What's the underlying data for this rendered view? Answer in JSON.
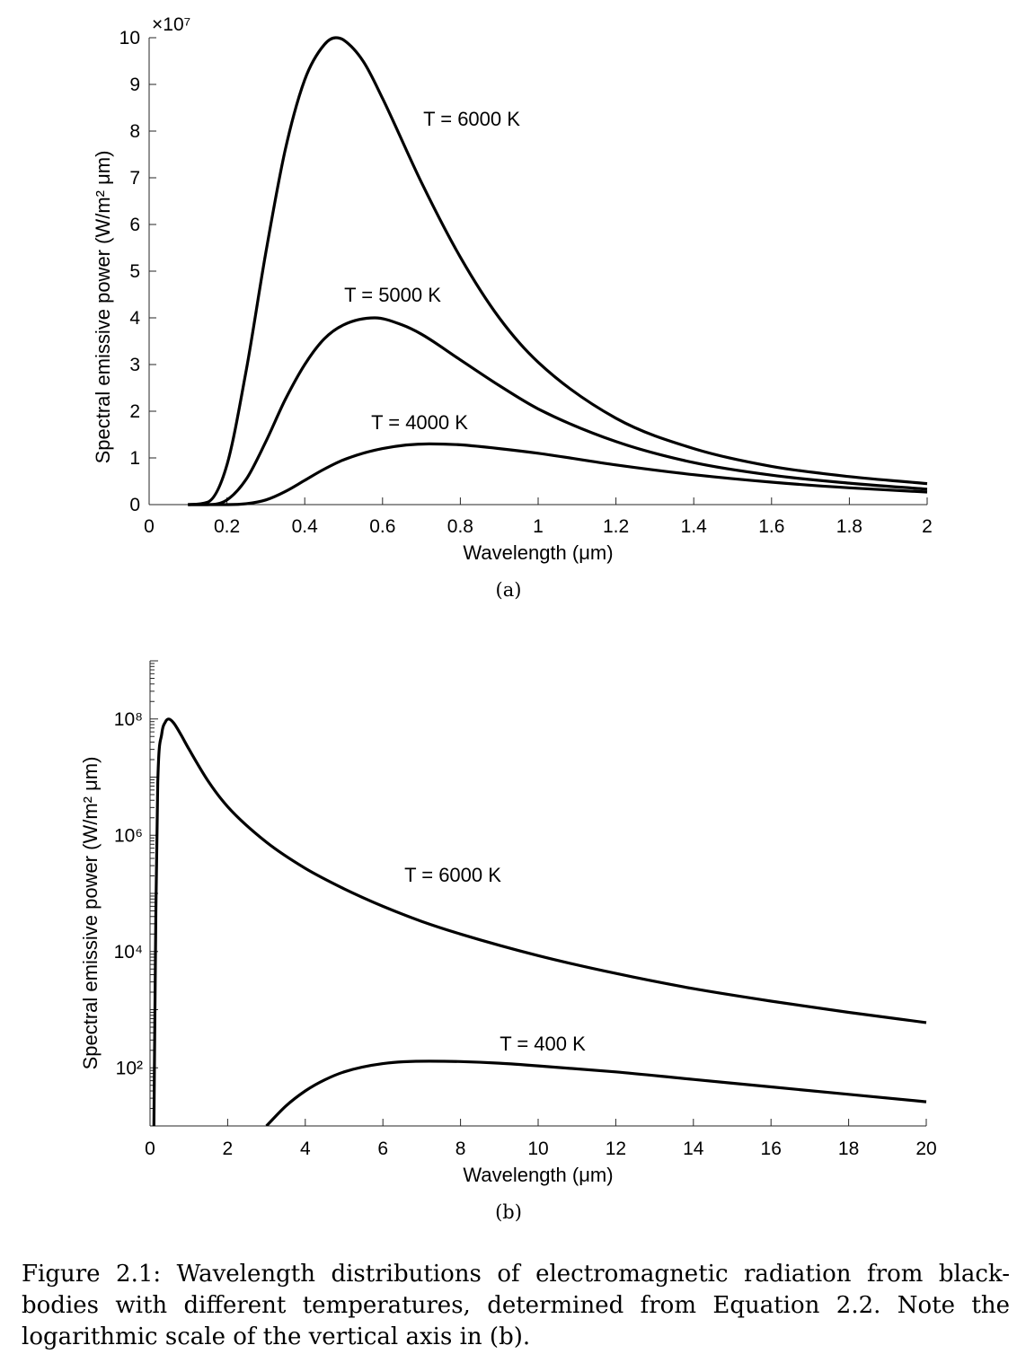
{
  "chart_data": [
    {
      "type": "line",
      "title": "",
      "xlabel": "Wavelength (μm)",
      "ylabel": "Spectral emissive power (W/m² μm)",
      "y_exponent_label": "×10⁷",
      "xlim": [
        0,
        2
      ],
      "ylim": [
        0,
        10
      ],
      "x_ticks": [
        0,
        0.2,
        0.4,
        0.6,
        0.8,
        1,
        1.2,
        1.4,
        1.6,
        1.8,
        2
      ],
      "x_tick_labels": [
        "0",
        "0.2",
        "0.4",
        "0.6",
        "0.8",
        "1",
        "1.2",
        "1.4",
        "1.6",
        "1.8",
        "2"
      ],
      "y_ticks": [
        0,
        1,
        2,
        3,
        4,
        5,
        6,
        7,
        8,
        9,
        10
      ],
      "y_tick_labels": [
        "0",
        "1",
        "2",
        "3",
        "4",
        "5",
        "6",
        "7",
        "8",
        "9",
        "10"
      ],
      "grid": false,
      "series": [
        {
          "name": "T = 6000 K",
          "temperature_K": 6000,
          "label": "T = 6000 K",
          "x": [
            0.1,
            0.15,
            0.2,
            0.25,
            0.3,
            0.35,
            0.4,
            0.45,
            0.48,
            0.5,
            0.55,
            0.6,
            0.7,
            0.8,
            0.9,
            1.0,
            1.2,
            1.4,
            1.6,
            1.8,
            2.0
          ],
          "values": [
            0.0,
            0.05,
            0.85,
            2.9,
            5.4,
            7.6,
            9.1,
            9.85,
            10.0,
            9.95,
            9.5,
            8.7,
            6.9,
            5.3,
            4.0,
            3.05,
            1.85,
            1.2,
            0.82,
            0.6,
            0.45
          ]
        },
        {
          "name": "T = 5000 K",
          "temperature_K": 5000,
          "label": "T = 5000 K",
          "x": [
            0.1,
            0.15,
            0.2,
            0.25,
            0.3,
            0.35,
            0.4,
            0.45,
            0.5,
            0.58,
            0.65,
            0.7,
            0.8,
            0.9,
            1.0,
            1.2,
            1.4,
            1.6,
            1.8,
            2.0
          ],
          "values": [
            0.0,
            0.0,
            0.1,
            0.55,
            1.35,
            2.25,
            3.0,
            3.55,
            3.85,
            4.0,
            3.85,
            3.65,
            3.1,
            2.55,
            2.05,
            1.35,
            0.9,
            0.63,
            0.46,
            0.33
          ]
        },
        {
          "name": "T = 4000 K",
          "temperature_K": 4000,
          "label": "T = 4000 K",
          "x": [
            0.1,
            0.2,
            0.25,
            0.3,
            0.35,
            0.4,
            0.45,
            0.5,
            0.6,
            0.72,
            0.8,
            0.9,
            1.0,
            1.2,
            1.4,
            1.6,
            1.8,
            2.0
          ],
          "values": [
            0.0,
            0.0,
            0.02,
            0.1,
            0.28,
            0.52,
            0.76,
            0.96,
            1.2,
            1.3,
            1.28,
            1.2,
            1.1,
            0.85,
            0.64,
            0.48,
            0.36,
            0.27
          ]
        }
      ]
    },
    {
      "type": "line",
      "title": "",
      "xlabel": "Wavelength (μm)",
      "ylabel": "Spectral emissive power (W/m² μm)",
      "y_scale": "log",
      "xlim": [
        0,
        20
      ],
      "ylim": [
        10,
        1000000000
      ],
      "x_ticks": [
        0,
        2,
        4,
        6,
        8,
        10,
        12,
        14,
        16,
        18,
        20
      ],
      "x_tick_labels": [
        "0",
        "2",
        "4",
        "6",
        "8",
        "10",
        "12",
        "14",
        "16",
        "18",
        "20"
      ],
      "y_major_ticks": [
        100,
        10000,
        1000000,
        100000000
      ],
      "y_tick_labels": [
        "10²",
        "10⁴",
        "10⁶",
        "10⁸"
      ],
      "grid": false,
      "series": [
        {
          "name": "T = 6000 K",
          "temperature_K": 6000,
          "label": "T = 6000 K",
          "x": [
            0.1,
            0.15,
            0.2,
            0.3,
            0.4,
            0.48,
            0.6,
            0.8,
            1.0,
            1.5,
            2,
            3,
            4,
            5,
            6,
            7,
            8,
            10,
            12,
            14,
            16,
            18,
            20
          ],
          "values": [
            10,
            50000,
            8000000,
            55000000,
            90000000,
            100000000,
            87000000,
            53000000,
            30500000,
            8500000,
            3100000,
            760000,
            270000,
            120000,
            60000,
            33000,
            20000,
            8500,
            4200,
            2300,
            1400,
            900,
            600
          ]
        },
        {
          "name": "T = 400 K",
          "temperature_K": 400,
          "label": "T = 400 K",
          "x": [
            3,
            3.5,
            4,
            4.5,
            5,
            6,
            7.2,
            8,
            9,
            10,
            12,
            14,
            16,
            18,
            20
          ],
          "values": [
            10,
            22,
            40,
            62,
            85,
            118,
            130,
            128,
            120,
            108,
            85,
            63,
            47,
            35,
            26
          ]
        }
      ]
    }
  ],
  "figure": {
    "sublabel_a": "(a)",
    "sublabel_b": "(b)",
    "caption": "Figure 2.1: Wavelength distributions of electromagnetic radiation from black-bodies with different temperatures, determined from Equation 2.2. Note the logarithmic scale of the vertical axis in (b)."
  }
}
